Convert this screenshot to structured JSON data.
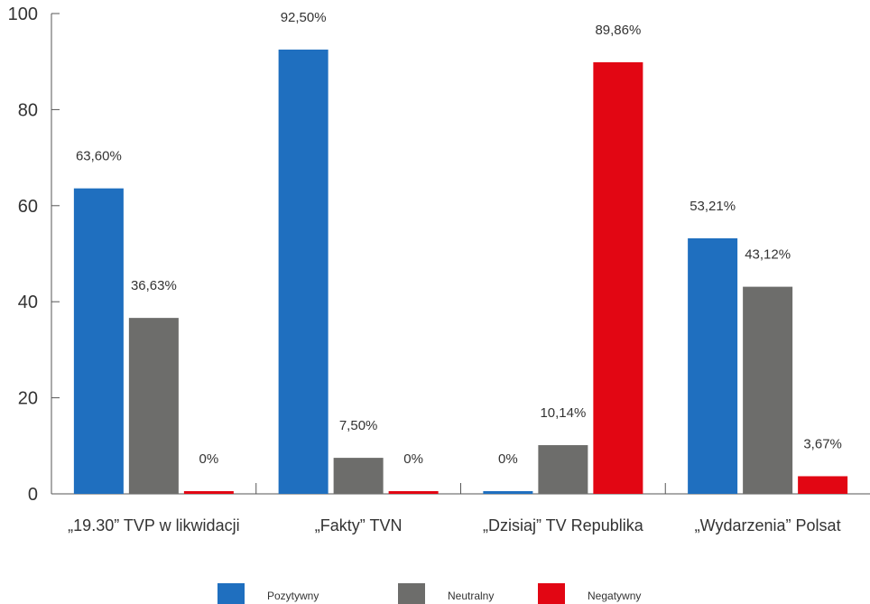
{
  "chart_data": {
    "type": "bar",
    "categories": [
      "„19.30” TVP w likwidacji",
      "„Fakty” TVN",
      "„Dzisiaj” TV Republika",
      "„Wydarzenia” Polsat"
    ],
    "series": [
      {
        "name": "Pozytywny",
        "color": "#1f6fbf",
        "values": [
          63.6,
          92.5,
          0,
          53.21
        ],
        "labels": [
          "63,60%",
          "92,50%",
          "0%",
          "53,21%"
        ]
      },
      {
        "name": "Neutralny",
        "color": "#6d6d6b",
        "values": [
          36.63,
          7.5,
          10.14,
          43.12
        ],
        "labels": [
          "36,63%",
          "7,50%",
          "10,14%",
          "43,12%"
        ]
      },
      {
        "name": "Negatywny",
        "color": "#e20613",
        "values": [
          0,
          0,
          89.86,
          3.67
        ],
        "labels": [
          "0%",
          "0%",
          "89,86%",
          "3,67%"
        ]
      }
    ],
    "y_ticks": [
      "0",
      "20",
      "40",
      "60",
      "80",
      "100"
    ],
    "ylim": [
      0,
      100
    ],
    "grid": false,
    "legend_position": "bottom-center"
  }
}
